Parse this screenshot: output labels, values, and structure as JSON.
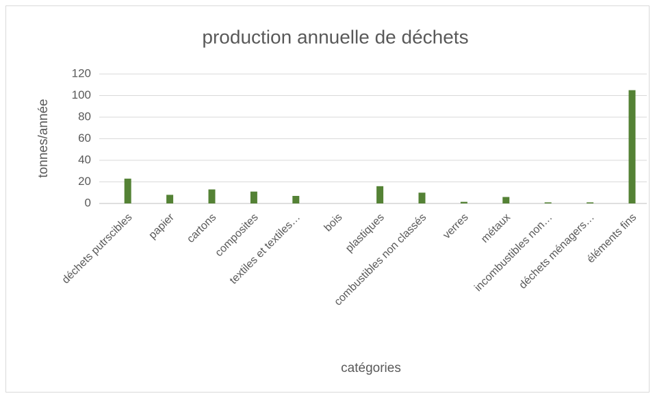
{
  "chart_data": {
    "type": "bar",
    "title": "production annuelle de déchets",
    "x_label": "catégories",
    "y_label": "tonnes/année",
    "categories": [
      "déchets putrscibles",
      "papier",
      "cartons",
      "composites",
      "textiles et textiles…",
      "bois",
      "plastiques",
      "combustibles non classés",
      "verres",
      "métaux",
      "incombustibles non…",
      "déchets ménagers…",
      "éléments fins"
    ],
    "values": [
      23,
      8,
      13,
      11,
      7,
      0,
      16,
      10,
      1.5,
      6,
      1,
      1,
      105
    ],
    "color": "#548235",
    "ylim": [
      0,
      120
    ],
    "yticks": [
      0,
      20,
      40,
      60,
      80,
      100,
      120
    ],
    "grid": true
  }
}
